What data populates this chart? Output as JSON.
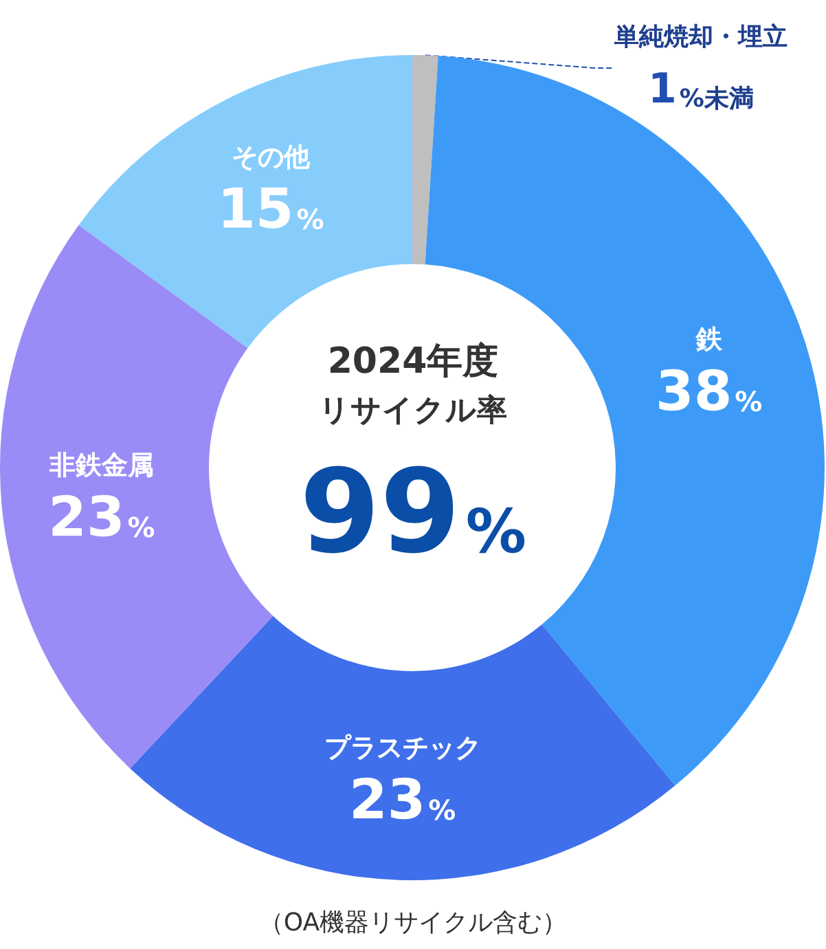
{
  "chart_data": {
    "type": "donut",
    "categories": [
      "単純焼却・埋立",
      "鉄",
      "プラスチック",
      "非鉄金属",
      "その他"
    ],
    "values": [
      1,
      38,
      23,
      23,
      15
    ],
    "colors": [
      "#bfbfbf",
      "#3d9bf7",
      "#3f6fea",
      "#9a8cf6",
      "#86cdfc"
    ],
    "value_labels": [
      "1%未満",
      "38%",
      "23%",
      "23%",
      "15%"
    ],
    "annotations": [
      "2024年度",
      "リサイクル率",
      "99%",
      "（OA機器リサイクル含む）"
    ],
    "legend": false
  }
}
